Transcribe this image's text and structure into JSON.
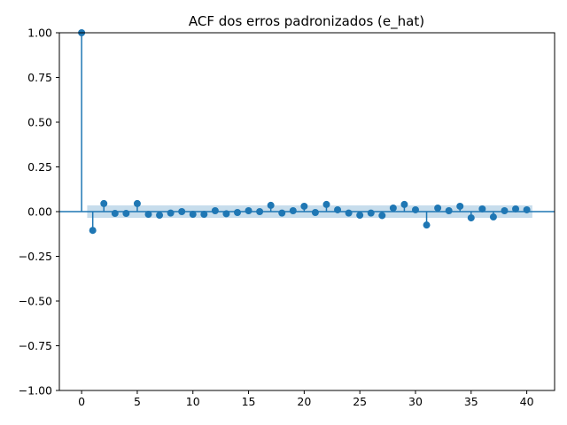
{
  "chart_data": {
    "type": "stem",
    "title": "ACF dos erros padronizados (e_hat)",
    "xlabel": "",
    "ylabel": "",
    "xlim": [
      -2,
      42.5
    ],
    "ylim": [
      -1.0,
      1.0
    ],
    "x_ticks": [
      0,
      5,
      10,
      15,
      20,
      25,
      30,
      35,
      40
    ],
    "y_ticks": [
      -1.0,
      -0.75,
      -0.5,
      -0.25,
      0.0,
      0.25,
      0.5,
      0.75,
      1.0
    ],
    "x_tick_labels": [
      "0",
      "5",
      "10",
      "15",
      "20",
      "25",
      "30",
      "35",
      "40"
    ],
    "y_tick_labels": [
      "−1.00",
      "−0.75",
      "−0.50",
      "−0.25",
      "0.00",
      "0.25",
      "0.50",
      "0.75",
      "1.00"
    ],
    "grid": false,
    "lags": [
      0,
      1,
      2,
      3,
      4,
      5,
      6,
      7,
      8,
      9,
      10,
      11,
      12,
      13,
      14,
      15,
      16,
      17,
      18,
      19,
      20,
      21,
      22,
      23,
      24,
      25,
      26,
      27,
      28,
      29,
      30,
      31,
      32,
      33,
      34,
      35,
      36,
      37,
      38,
      39,
      40
    ],
    "values": [
      1.0,
      -0.105,
      0.045,
      -0.01,
      -0.01,
      0.045,
      -0.015,
      -0.02,
      -0.008,
      0.0,
      -0.015,
      -0.015,
      0.005,
      -0.012,
      -0.005,
      0.005,
      0.0,
      0.035,
      -0.008,
      0.005,
      0.03,
      -0.005,
      0.04,
      0.01,
      -0.008,
      -0.02,
      -0.008,
      -0.022,
      0.02,
      0.04,
      0.01,
      -0.075,
      0.02,
      0.005,
      0.03,
      -0.035,
      0.015,
      -0.03,
      0.005,
      0.015,
      0.01
    ],
    "confidence_band": {
      "x_start": 0.5,
      "x_end": 40.5,
      "lower": -0.035,
      "upper": 0.035
    },
    "colors": {
      "stem": "#1f77b4",
      "band": "#1f77b4",
      "axes": "#000000"
    }
  }
}
